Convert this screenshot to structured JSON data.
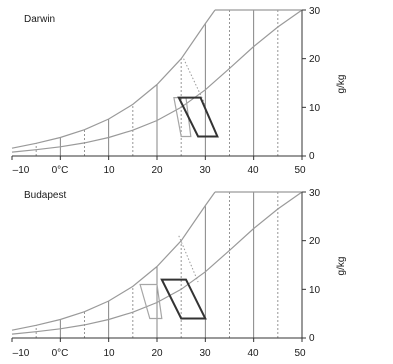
{
  "chart_data": [
    {
      "type": "line",
      "title": "Darwin",
      "xlabel": "",
      "ylabel": "g/kg",
      "xlim": [
        -10,
        50
      ],
      "ylim": [
        0,
        30
      ],
      "x_ticks": [
        -10,
        0,
        10,
        20,
        30,
        40,
        50
      ],
      "x_tick_labels": [
        "–10",
        "0°C",
        "10",
        "20",
        "30",
        "40",
        "50"
      ],
      "y_ticks": [
        0,
        10,
        20,
        30
      ],
      "y_tick_labels": [
        "0",
        "10",
        "20",
        "30"
      ],
      "curves": [
        {
          "x": [
            -10,
            -5,
            0,
            5,
            10,
            15,
            20,
            25,
            30,
            32
          ],
          "y": [
            1.6,
            2.6,
            3.8,
            5.4,
            7.6,
            10.6,
            14.7,
            20.0,
            27.2,
            30.0
          ]
        },
        {
          "x": [
            -10,
            -5,
            0,
            5,
            10,
            15,
            20,
            25,
            30,
            35,
            40,
            45,
            50
          ],
          "y": [
            0.8,
            1.3,
            1.9,
            2.7,
            3.8,
            5.3,
            7.3,
            10.0,
            13.6,
            18.0,
            22.5,
            26.5,
            30.0
          ]
        }
      ],
      "wet_bulb_lines": [
        {
          "x": [
            25.5,
            30
          ],
          "y": [
            20,
            10.5
          ]
        }
      ],
      "comfort_zones": [
        {
          "name": "inner",
          "x": [
            23.5,
            25,
            27,
            26
          ],
          "y": [
            12,
            4,
            4,
            12
          ]
        },
        {
          "name": "outer",
          "x": [
            24.5,
            29,
            32.5,
            28.5
          ],
          "y": [
            12,
            12,
            4,
            4
          ]
        }
      ]
    },
    {
      "type": "line",
      "title": "Budapest",
      "xlabel": "",
      "ylabel": "g/kg",
      "xlim": [
        -10,
        50
      ],
      "ylim": [
        0,
        30
      ],
      "x_ticks": [
        -10,
        0,
        10,
        20,
        30,
        40,
        50
      ],
      "x_tick_labels": [
        "–10",
        "0°C",
        "10",
        "20",
        "30",
        "40",
        "50"
      ],
      "y_ticks": [
        0,
        10,
        20,
        30
      ],
      "y_tick_labels": [
        "0",
        "10",
        "20",
        "30"
      ],
      "curves": [
        {
          "x": [
            -10,
            -5,
            0,
            5,
            10,
            15,
            20,
            25,
            30,
            32
          ],
          "y": [
            1.6,
            2.6,
            3.8,
            5.4,
            7.6,
            10.6,
            14.7,
            20.0,
            27.2,
            30.0
          ]
        },
        {
          "x": [
            -10,
            -5,
            0,
            5,
            10,
            15,
            20,
            25,
            30,
            35,
            40,
            45,
            50
          ],
          "y": [
            0.8,
            1.3,
            1.9,
            2.7,
            3.8,
            5.3,
            7.3,
            10.0,
            13.6,
            18.0,
            22.5,
            26.5,
            30.0
          ]
        }
      ],
      "wet_bulb_lines": [
        {
          "x": [
            24.5,
            28.5
          ],
          "y": [
            21,
            11.5
          ]
        }
      ],
      "comfort_zones": [
        {
          "name": "inner",
          "x": [
            16.5,
            18.5,
            21,
            20
          ],
          "y": [
            11,
            4,
            4,
            11
          ]
        },
        {
          "name": "outer",
          "x": [
            21,
            26,
            30,
            25
          ],
          "y": [
            12,
            12,
            4,
            4
          ]
        }
      ]
    }
  ]
}
